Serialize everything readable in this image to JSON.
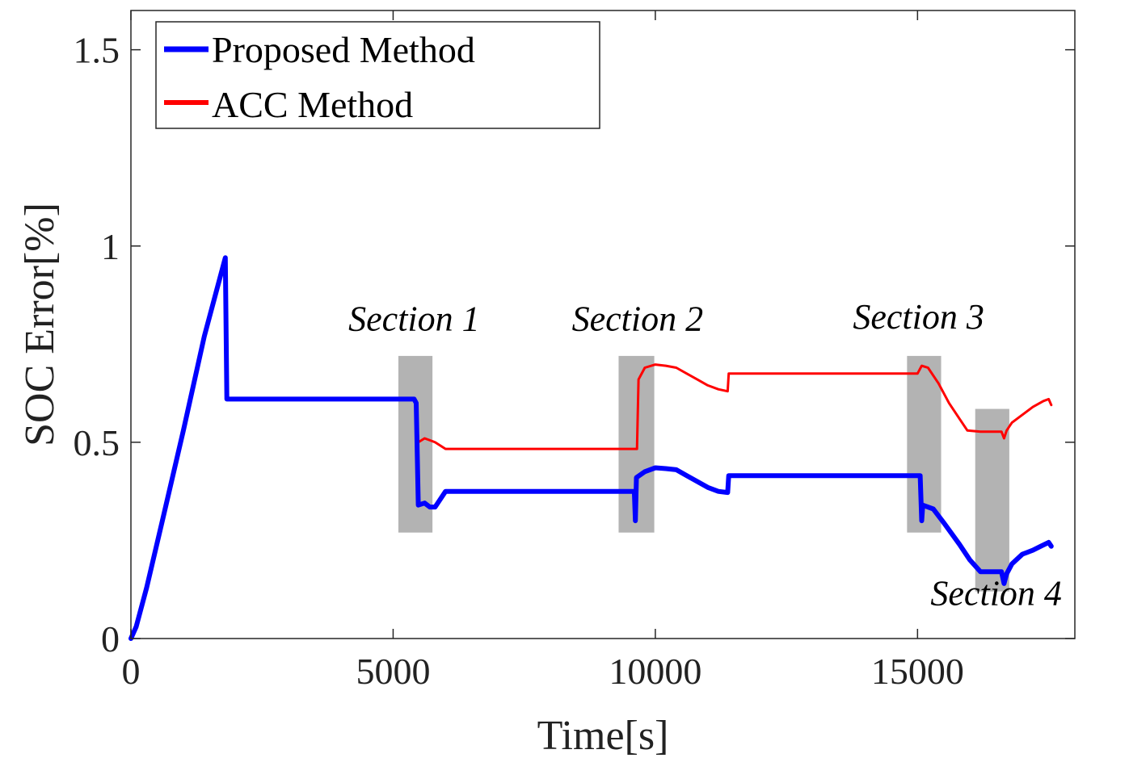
{
  "chart_data": {
    "type": "line",
    "title": "",
    "xlabel": "Time[s]",
    "ylabel": "SOC Error[%]",
    "xlim": [
      0,
      18000
    ],
    "ylim": [
      0,
      1.6
    ],
    "xticks": [
      0,
      5000,
      10000,
      15000
    ],
    "xtick_labels": [
      "0",
      "5000",
      "10000",
      "15000"
    ],
    "yticks": [
      0,
      0.5,
      1,
      1.5
    ],
    "ytick_labels": [
      "0",
      "0.5",
      "1",
      "1.5"
    ],
    "grid": false,
    "legend_position": "top-left",
    "series": [
      {
        "name": "Proposed Method",
        "color": "#0000ff",
        "points": [
          [
            0,
            0
          ],
          [
            100,
            0.03
          ],
          [
            300,
            0.13
          ],
          [
            600,
            0.3
          ],
          [
            1000,
            0.53
          ],
          [
            1400,
            0.77
          ],
          [
            1800,
            0.97
          ],
          [
            1830,
            0.61
          ],
          [
            3000,
            0.61
          ],
          [
            4500,
            0.61
          ],
          [
            5400,
            0.61
          ],
          [
            5440,
            0.6
          ],
          [
            5480,
            0.34
          ],
          [
            5600,
            0.345
          ],
          [
            5700,
            0.335
          ],
          [
            5800,
            0.335
          ],
          [
            6000,
            0.375
          ],
          [
            7500,
            0.375
          ],
          [
            9000,
            0.375
          ],
          [
            9600,
            0.375
          ],
          [
            9620,
            0.3
          ],
          [
            9640,
            0.41
          ],
          [
            9800,
            0.425
          ],
          [
            10000,
            0.435
          ],
          [
            10200,
            0.433
          ],
          [
            10400,
            0.43
          ],
          [
            10600,
            0.415
          ],
          [
            10800,
            0.4
          ],
          [
            11000,
            0.385
          ],
          [
            11200,
            0.375
          ],
          [
            11380,
            0.372
          ],
          [
            11400,
            0.415
          ],
          [
            12500,
            0.415
          ],
          [
            14000,
            0.415
          ],
          [
            15050,
            0.415
          ],
          [
            15080,
            0.3
          ],
          [
            15100,
            0.34
          ],
          [
            15300,
            0.33
          ],
          [
            15500,
            0.295
          ],
          [
            15800,
            0.24
          ],
          [
            16000,
            0.2
          ],
          [
            16200,
            0.17
          ],
          [
            16600,
            0.17
          ],
          [
            16650,
            0.14
          ],
          [
            16700,
            0.165
          ],
          [
            16800,
            0.19
          ],
          [
            17000,
            0.215
          ],
          [
            17200,
            0.225
          ],
          [
            17350,
            0.235
          ],
          [
            17500,
            0.245
          ],
          [
            17550,
            0.235
          ]
        ]
      },
      {
        "name": "ACC Method",
        "color": "#ff0000",
        "points": [
          [
            0,
            0
          ],
          [
            100,
            0.03
          ],
          [
            300,
            0.13
          ],
          [
            600,
            0.3
          ],
          [
            1000,
            0.53
          ],
          [
            1400,
            0.77
          ],
          [
            1800,
            0.97
          ],
          [
            1830,
            0.61
          ],
          [
            3000,
            0.61
          ],
          [
            4500,
            0.61
          ],
          [
            5400,
            0.61
          ],
          [
            5440,
            0.6
          ],
          [
            5480,
            0.5
          ],
          [
            5600,
            0.51
          ],
          [
            5700,
            0.505
          ],
          [
            5800,
            0.5
          ],
          [
            6000,
            0.483
          ],
          [
            7500,
            0.483
          ],
          [
            9000,
            0.483
          ],
          [
            9650,
            0.483
          ],
          [
            9680,
            0.66
          ],
          [
            9800,
            0.69
          ],
          [
            10000,
            0.698
          ],
          [
            10200,
            0.695
          ],
          [
            10400,
            0.69
          ],
          [
            10600,
            0.675
          ],
          [
            10800,
            0.66
          ],
          [
            11000,
            0.645
          ],
          [
            11200,
            0.635
          ],
          [
            11380,
            0.63
          ],
          [
            11400,
            0.675
          ],
          [
            12500,
            0.675
          ],
          [
            14000,
            0.675
          ],
          [
            15000,
            0.675
          ],
          [
            15080,
            0.695
          ],
          [
            15200,
            0.69
          ],
          [
            15400,
            0.65
          ],
          [
            15600,
            0.6
          ],
          [
            15800,
            0.56
          ],
          [
            15950,
            0.53
          ],
          [
            16200,
            0.527
          ],
          [
            16600,
            0.527
          ],
          [
            16650,
            0.51
          ],
          [
            16700,
            0.53
          ],
          [
            16800,
            0.55
          ],
          [
            17000,
            0.57
          ],
          [
            17200,
            0.59
          ],
          [
            17400,
            0.605
          ],
          [
            17500,
            0.61
          ],
          [
            17550,
            0.595
          ]
        ]
      }
    ],
    "annotations": [
      {
        "text": "Section 1",
        "x_range": [
          5100,
          5750
        ],
        "y_range": [
          0.27,
          0.72
        ],
        "label_x": 5400,
        "label_y": 0.785
      },
      {
        "text": "Section 2",
        "x_range": [
          9300,
          9980
        ],
        "y_range": [
          0.27,
          0.72
        ],
        "label_x": 9660,
        "label_y": 0.785
      },
      {
        "text": "Section 3",
        "x_range": [
          14800,
          15450
        ],
        "y_range": [
          0.27,
          0.72
        ],
        "label_x": 15020,
        "label_y": 0.79
      },
      {
        "text": "Section 4",
        "x_range": [
          16100,
          16750
        ],
        "y_range": [
          0.12,
          0.585
        ],
        "label_x": 16500,
        "label_y": 0.085
      }
    ],
    "band_color": "#a8a8a8"
  }
}
